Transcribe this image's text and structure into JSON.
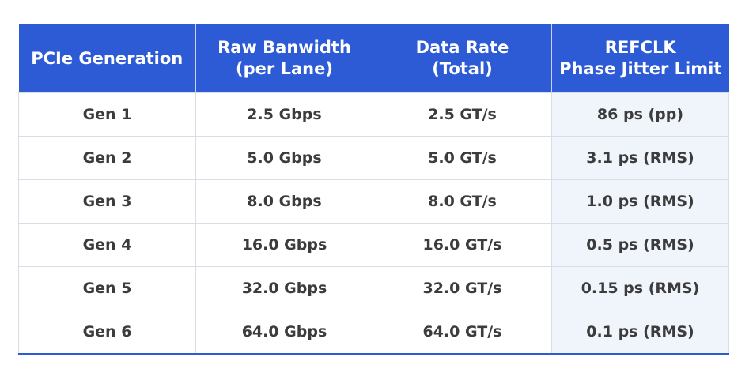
{
  "header": {
    "col1": [
      "PCIe Generation"
    ],
    "col2": [
      "Raw Banwidth",
      "(per Lane)"
    ],
    "col3": [
      "Data Rate",
      "(Total)"
    ],
    "col4": [
      "REFCLK",
      "Phase Jitter Limit"
    ]
  },
  "rows": [
    [
      "Gen 1",
      "2.5 Gbps",
      "2.5 GT/s",
      "86  ps (pp)"
    ],
    [
      "Gen 2",
      "5.0 Gbps",
      "5.0 GT/s",
      "3.1 ps (RMS)"
    ],
    [
      "Gen 3",
      "8.0 Gbps",
      "8.0 GT/s",
      "1.0 ps (RMS)"
    ],
    [
      "Gen 4",
      "16.0 Gbps",
      "16.0 GT/s",
      "0.5 ps (RMS)"
    ],
    [
      "Gen 5",
      "32.0 Gbps",
      "32.0 GT/s",
      "0.15 ps (RMS)"
    ],
    [
      "Gen 6",
      "64.0 Gbps",
      "64.0 GT/s",
      "0.1 ps (RMS)"
    ]
  ],
  "colors": {
    "header_bg": "#2d5bd6",
    "highlight_column_bg": "#f0f5fc",
    "body_text": "#3c3c3c",
    "grid": "#d9dde6"
  }
}
